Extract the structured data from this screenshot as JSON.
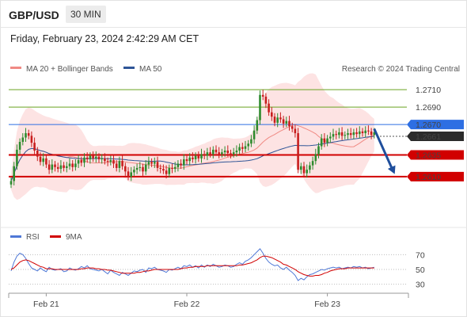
{
  "header": {
    "symbol": "GBP/USD",
    "period": "30 MIN",
    "datetime": "Friday, February 23, 2024 2:42:29 AM CET"
  },
  "chart_data": [
    {
      "type": "candlestick",
      "legend": [
        {
          "label": "MA 20 + Bollinger Bands",
          "color": "#f08a84"
        },
        {
          "label": "MA 50",
          "color": "#2f5597"
        }
      ],
      "copyright": "Research © 2024 Trading Central",
      "ylim": [
        1.2558,
        1.2722
      ],
      "levels": [
        {
          "value": 1.271,
          "label": "1.2710",
          "kind": "target",
          "color": "#6aa322"
        },
        {
          "value": 1.269,
          "label": "1.2690",
          "kind": "target",
          "color": "#6aa322"
        },
        {
          "value": 1.267,
          "label": "1.2670",
          "kind": "pivot",
          "color": "#2e6fe3"
        },
        {
          "value": 1.2635,
          "label": "1.2635",
          "kind": "support",
          "color": "#d10000"
        },
        {
          "value": 1.261,
          "label": "1.2610",
          "kind": "support",
          "color": "#d10000"
        }
      ],
      "last_price": {
        "value": 1.2661,
        "label": "1.2661"
      },
      "x_ticks": [
        {
          "index": 12,
          "label": "Feb 21"
        },
        {
          "index": 60,
          "label": "Feb 22"
        },
        {
          "index": 108,
          "label": "Feb 23"
        }
      ],
      "candle_count": 125,
      "bullish_color": "#2e8b2e",
      "bearish_color": "#c81e1e",
      "closes": [
        1.2605,
        1.2622,
        1.2641,
        1.265,
        1.2655,
        1.266,
        1.2657,
        1.2649,
        1.264,
        1.2633,
        1.2627,
        1.2631,
        1.2624,
        1.2618,
        1.2624,
        1.2621,
        1.2619,
        1.2623,
        1.262,
        1.2622,
        1.2625,
        1.2621,
        1.2625,
        1.2629,
        1.2626,
        1.2632,
        1.263,
        1.2634,
        1.2631,
        1.2633,
        1.263,
        1.2631,
        1.2628,
        1.2627,
        1.2629,
        1.2625,
        1.262,
        1.2628,
        1.2622,
        1.2616,
        1.261,
        1.2615,
        1.2618,
        1.262,
        1.2621,
        1.2616,
        1.2624,
        1.2627,
        1.2625,
        1.2627,
        1.262,
        1.2619,
        1.2617,
        1.2613,
        1.262,
        1.2619,
        1.2621,
        1.2625,
        1.2623,
        1.263,
        1.2628,
        1.2632,
        1.263,
        1.2634,
        1.2631,
        1.2636,
        1.2634,
        1.2638,
        1.2636,
        1.2641,
        1.2638,
        1.2636,
        1.2638,
        1.264,
        1.2637,
        1.2636,
        1.2638,
        1.264,
        1.2644,
        1.2642,
        1.2645,
        1.2648,
        1.2653,
        1.2663,
        1.2675,
        1.2704,
        1.2702,
        1.2694,
        1.2684,
        1.2679,
        1.2672,
        1.2678,
        1.2676,
        1.2671,
        1.2674,
        1.2668,
        1.2665,
        1.266,
        1.2618,
        1.2622,
        1.2614,
        1.2618,
        1.2623,
        1.2628,
        1.2636,
        1.2645,
        1.2654,
        1.2649,
        1.2654,
        1.2656,
        1.2659,
        1.2658,
        1.2661,
        1.2657,
        1.2658,
        1.266,
        1.2658,
        1.2661,
        1.2659,
        1.2662,
        1.266,
        1.2663,
        1.2662,
        1.2658,
        1.2661
      ],
      "projection": {
        "from_index": 124,
        "from_value": 1.2665,
        "to_index": 131,
        "to_value": 1.2613,
        "color": "#1f4e9c"
      }
    },
    {
      "type": "line",
      "legend": [
        {
          "label": "RSI",
          "color": "#4f78d6"
        },
        {
          "label": "9MA",
          "color": "#d10000"
        }
      ],
      "ylim": [
        20,
        80
      ],
      "y_ticks": [
        {
          "value": 70,
          "label": "70"
        },
        {
          "value": 50,
          "label": "50"
        },
        {
          "value": 30,
          "label": "30"
        }
      ],
      "series": [
        {
          "color": "#4f78d6",
          "values": [
            48,
            60,
            68,
            72,
            70,
            65,
            58,
            52,
            50,
            48,
            52,
            49,
            47,
            53,
            50,
            49,
            50,
            51,
            47,
            48,
            52,
            50,
            49,
            51,
            54,
            52,
            55,
            51,
            50,
            49,
            48,
            50,
            47,
            44,
            49,
            46,
            44,
            42,
            46,
            44,
            42,
            45,
            48,
            47,
            49,
            50,
            46,
            52,
            51,
            53,
            50,
            49,
            48,
            46,
            50,
            49,
            51,
            53,
            51,
            55,
            54,
            56,
            53,
            55,
            52,
            56,
            53,
            56,
            54,
            57,
            55,
            53,
            54,
            56,
            55,
            53,
            54,
            57,
            59,
            57,
            61,
            63,
            66,
            70,
            74,
            78,
            72,
            65,
            60,
            57,
            55,
            56,
            52,
            50,
            53,
            49,
            46,
            42,
            35,
            38,
            36,
            40,
            43,
            44,
            46,
            48,
            50,
            49,
            51,
            52,
            53,
            52,
            53,
            51,
            52,
            53,
            52,
            54,
            53,
            54,
            52,
            53,
            51,
            52,
            53
          ]
        },
        {
          "color": "#d10000",
          "values": [
            50,
            52,
            56,
            60,
            62,
            63,
            62,
            60,
            58,
            56,
            54,
            53,
            51,
            51,
            51,
            50,
            50,
            50,
            50,
            50,
            50,
            50,
            50,
            50,
            51,
            51,
            52,
            52,
            52,
            51,
            51,
            50,
            50,
            49,
            49,
            48,
            47,
            46,
            45,
            45,
            45,
            45,
            45,
            46,
            46,
            47,
            48,
            48,
            49,
            50,
            50,
            50,
            50,
            50,
            50,
            50,
            50,
            50,
            51,
            52,
            52,
            53,
            53,
            54,
            54,
            54,
            54,
            55,
            55,
            55,
            55,
            55,
            55,
            55,
            55,
            55,
            55,
            55,
            56,
            56,
            57,
            58,
            59,
            61,
            63,
            66,
            68,
            68,
            67,
            66,
            64,
            62,
            60,
            57,
            56,
            54,
            52,
            50,
            47,
            45,
            43,
            42,
            41,
            41,
            42,
            42,
            43,
            45,
            46,
            48,
            49,
            50,
            51,
            51,
            51,
            52,
            52,
            52,
            52,
            52,
            52,
            52,
            52,
            52,
            52
          ]
        }
      ]
    }
  ]
}
